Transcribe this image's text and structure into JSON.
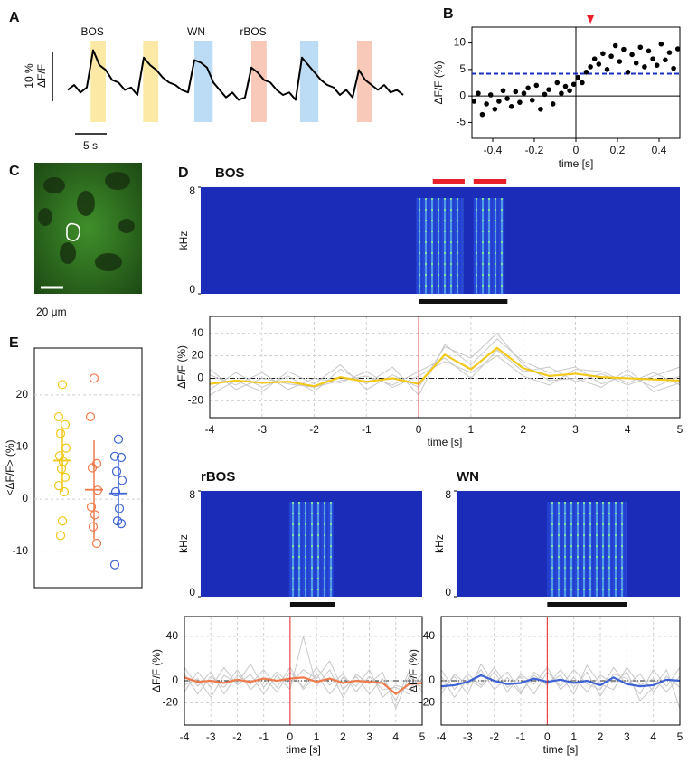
{
  "chart_data": [
    {
      "type": "trace",
      "panel": "A",
      "color": "#000000",
      "x": [
        0,
        1,
        2,
        3,
        4,
        5,
        6,
        7,
        8,
        9,
        10,
        11,
        12,
        13,
        14,
        15,
        16,
        17,
        18,
        19,
        20,
        21,
        22,
        23,
        24,
        25,
        26,
        27,
        28,
        29,
        30,
        31,
        32,
        33,
        34,
        35,
        36,
        37,
        38,
        39,
        40,
        41,
        42,
        43,
        44,
        45,
        46,
        47,
        48,
        49,
        50,
        51,
        52,
        53
      ],
      "values": [
        1,
        2,
        0.5,
        1.5,
        9,
        6,
        5,
        3,
        2.5,
        1,
        1.5,
        0,
        7.5,
        6,
        5,
        3.5,
        2.5,
        2,
        1,
        0.5,
        7,
        6.5,
        5.5,
        2.5,
        1,
        -0.5,
        0.5,
        -1,
        -0.5,
        5.5,
        4.5,
        3,
        2.5,
        1,
        0,
        0.5,
        -1,
        7.5,
        6,
        4.5,
        3,
        2,
        1.5,
        0,
        1,
        -0.5,
        5,
        3,
        2,
        1,
        2,
        0.5,
        1,
        0
      ],
      "stimuli": [
        {
          "x": [
            3.6,
            6
          ],
          "color": "#fbe9a5",
          "label": "BOS"
        },
        {
          "x": [
            11.9,
            14.3
          ],
          "color": "#fbe9a5"
        },
        {
          "x": [
            20,
            22.9
          ],
          "color": "#bcdcf5",
          "label": "WN"
        },
        {
          "x": [
            29,
            31.4
          ],
          "color": "#f8c8b8",
          "label": "rBOS"
        },
        {
          "x": [
            36.7,
            39.6
          ],
          "color": "#bcdcf5"
        },
        {
          "x": [
            45.7,
            48
          ],
          "color": "#f8c8b8"
        }
      ],
      "scale_y": {
        "value": 10,
        "label": "10 %"
      },
      "ylabel": "ΔF/F",
      "scale_x": {
        "value": 5,
        "label": "5 s"
      }
    },
    {
      "type": "scatter",
      "panel": "B",
      "color": "#000000",
      "x": [
        -0.49,
        -0.47,
        -0.45,
        -0.43,
        -0.41,
        -0.39,
        -0.37,
        -0.35,
        -0.33,
        -0.31,
        -0.29,
        -0.27,
        -0.25,
        -0.23,
        -0.21,
        -0.19,
        -0.17,
        -0.15,
        -0.13,
        -0.11,
        -0.09,
        -0.07,
        -0.05,
        -0.03,
        -0.01,
        0.01,
        0.03,
        0.05,
        0.07,
        0.09,
        0.11,
        0.13,
        0.15,
        0.17,
        0.19,
        0.21,
        0.23,
        0.25,
        0.27,
        0.29,
        0.31,
        0.33,
        0.35,
        0.37,
        0.39,
        0.41,
        0.43,
        0.45,
        0.47,
        0.49
      ],
      "values": [
        -1,
        0.5,
        -3.5,
        -1.5,
        0.2,
        -2.5,
        -1,
        1,
        -0.5,
        -2,
        0.8,
        -1.2,
        0.5,
        1.5,
        -0.8,
        2,
        -2.5,
        0.3,
        1.2,
        -1.5,
        2.5,
        0.5,
        1.8,
        1,
        2.2,
        3.5,
        2.5,
        4.5,
        5.5,
        7,
        6,
        8,
        5,
        7.5,
        9.5,
        6.5,
        8.8,
        4.5,
        7.8,
        6.2,
        9.2,
        5.5,
        8.5,
        7,
        5.8,
        9.8,
        6.8,
        8.2,
        5.2,
        8.9
      ],
      "xlim": [
        -0.5,
        0.5
      ],
      "xticks": [
        -0.4,
        -0.2,
        0,
        0.2,
        0.4
      ],
      "ylim": [
        -8,
        13
      ],
      "yticks": [
        -5,
        0,
        5,
        10
      ],
      "xlabel": "time [s]",
      "ylabel": "ΔF/F (%)",
      "hline": 4.2,
      "hline_color": "#1a2fc4",
      "marker_x": 0.07,
      "marker_color": "#e8202a"
    },
    {
      "type": "image",
      "panel": "C",
      "scale_label": "20 μm"
    },
    {
      "type": "dotplot",
      "panel": "E",
      "ylabel": "<ΔF/F> (%)",
      "ylim": [
        -17,
        29
      ],
      "yticks": [
        -10,
        0,
        10,
        20
      ],
      "grid": true,
      "series": [
        {
          "color": "#f2c81a",
          "values": [
            22,
            15.8,
            14.3,
            12.6,
            9.8,
            8.3,
            7.2,
            5.8,
            4.2,
            2.6,
            1.4,
            -4.2,
            -7
          ],
          "mean": 7.4,
          "error": 6
        },
        {
          "color": "#ef7a4c",
          "values": [
            23.2,
            15.8,
            6.8,
            6,
            1.7,
            -1.5,
            -3,
            -5.3,
            -8.5
          ],
          "mean": 1.8,
          "error": 9.5
        },
        {
          "color": "#3c62d6",
          "values": [
            11.5,
            8.2,
            8,
            5.3,
            3.6,
            1.4,
            -1.8,
            -4.2,
            -4.7,
            -12.6
          ],
          "mean": 1.1,
          "error": 6.5
        }
      ]
    },
    {
      "type": "spectrogram",
      "panel": "D",
      "title": "BOS",
      "ylabel": "kHz",
      "xlim": [
        -4,
        5
      ],
      "ylim": [
        0,
        8
      ],
      "yticks": [
        0,
        8
      ],
      "sound": [
        [
          -0.05,
          0.85
        ],
        [
          1.05,
          1.65
        ]
      ],
      "syllables": [
        [
          0.27,
          0.88
        ],
        [
          1.05,
          1.68
        ]
      ],
      "syllable_color": "#e8202a",
      "stimulus": [
        0,
        1.7
      ]
    },
    {
      "type": "line",
      "x": [
        -4,
        -3.5,
        -3,
        -2.5,
        -2,
        -1.5,
        -1,
        -0.5,
        0,
        0.5,
        1,
        1.5,
        2,
        2.5,
        3,
        3.5,
        4,
        4.5,
        5
      ],
      "xlim": [
        -4,
        5
      ],
      "xticks": [
        -4,
        -3,
        -2,
        -1,
        0,
        1,
        2,
        3,
        4,
        5
      ],
      "ylim": [
        -35,
        55
      ],
      "yticks": [
        -20,
        0,
        20,
        40
      ],
      "xlabel": "time [s]",
      "ylabel": "ΔF/F (%)",
      "grid": true,
      "hline": 0,
      "vline": 0,
      "vline_color": "#e8202a",
      "series": [
        {
          "color": "#c8c8c8",
          "values": [
            -10,
            5,
            -8,
            2,
            -12,
            8,
            -5,
            10,
            -15,
            30,
            12,
            35,
            15,
            5,
            10,
            -5,
            3,
            -8,
            2
          ]
        },
        {
          "color": "#c8c8c8",
          "values": [
            3,
            -6,
            5,
            -10,
            0,
            -4,
            6,
            -8,
            2,
            15,
            5,
            20,
            2,
            -6,
            8,
            6,
            -4,
            5,
            -6
          ]
        },
        {
          "color": "#c8c8c8",
          "values": [
            -15,
            -2,
            -12,
            6,
            -5,
            12,
            -10,
            3,
            -8,
            28,
            18,
            40,
            12,
            -2,
            0,
            -8,
            8,
            -12,
            -4
          ]
        },
        {
          "color": "#c8c8c8",
          "values": [
            8,
            -10,
            0,
            -5,
            -8,
            -2,
            2,
            -6,
            6,
            18,
            0,
            25,
            6,
            10,
            -3,
            4,
            -6,
            2,
            10
          ]
        },
        {
          "color": "#f2c81a",
          "values": [
            -5,
            -2,
            -4,
            -3,
            -7,
            1,
            -3,
            0,
            -5,
            21,
            8,
            27,
            9,
            2,
            4,
            1,
            0,
            -1,
            -2
          ]
        }
      ]
    },
    {
      "type": "spectrogram",
      "title": "rBOS",
      "ylabel": "kHz",
      "xlim": [
        -4,
        5
      ],
      "ylim": [
        0,
        8
      ],
      "yticks": [
        0,
        8
      ],
      "sound": [
        [
          -0.05,
          1.65
        ]
      ],
      "stimulus": [
        0,
        1.7
      ]
    },
    {
      "type": "line",
      "x": [
        -4,
        -3.5,
        -3,
        -2.5,
        -2,
        -1.5,
        -1,
        -0.5,
        0,
        0.5,
        1,
        1.5,
        2,
        2.5,
        3,
        3.5,
        4,
        4.5,
        5
      ],
      "xlim": [
        -4,
        5
      ],
      "xticks": [
        -4,
        -3,
        -2,
        -1,
        0,
        1,
        2,
        3,
        4,
        5
      ],
      "ylim": [
        -40,
        58
      ],
      "yticks": [
        -20,
        0,
        40
      ],
      "xlabel": "time [s]",
      "ylabel": "ΔF/F (%)",
      "grid": true,
      "hline": 0,
      "vline": 0,
      "vline_color": "#e8202a",
      "series": [
        {
          "color": "#c8c8c8",
          "values": [
            -10,
            8,
            -6,
            12,
            -4,
            6,
            -12,
            5,
            -8,
            40,
            -5,
            10,
            -15,
            6,
            -3,
            8,
            -25,
            4,
            -6
          ]
        },
        {
          "color": "#c8c8c8",
          "values": [
            6,
            -12,
            4,
            -6,
            10,
            -8,
            3,
            -10,
            8,
            -6,
            12,
            -4,
            6,
            -10,
            4,
            -8,
            -6,
            -12,
            2
          ]
        },
        {
          "color": "#c8c8c8",
          "values": [
            -4,
            2,
            -15,
            5,
            -2,
            15,
            -6,
            8,
            -3,
            10,
            2,
            18,
            -8,
            4,
            -12,
            2,
            -18,
            8,
            -10
          ]
        },
        {
          "color": "#c8c8c8",
          "values": [
            12,
            -5,
            8,
            -12,
            5,
            -3,
            10,
            -6,
            12,
            -8,
            6,
            -12,
            3,
            -5,
            10,
            -15,
            -4,
            -8,
            6
          ]
        },
        {
          "color": "#ef7a4c",
          "values": [
            3,
            -1,
            0,
            -2,
            1,
            -1,
            2,
            0,
            2,
            3,
            -1,
            2,
            -2,
            0,
            -1,
            -2,
            -12,
            -3,
            -2
          ]
        }
      ]
    },
    {
      "type": "spectrogram",
      "title": "WN",
      "ylabel": "kHz",
      "xlim": [
        -4,
        5
      ],
      "ylim": [
        0,
        8
      ],
      "yticks": [
        0,
        8
      ],
      "sound": [
        [
          0,
          3
        ]
      ],
      "stimulus": [
        0,
        3
      ]
    },
    {
      "type": "line",
      "x": [
        -4,
        -3.5,
        -3,
        -2.5,
        -2,
        -1.5,
        -1,
        -0.5,
        0,
        0.5,
        1,
        1.5,
        2,
        2.5,
        3,
        3.5,
        4,
        4.5,
        5
      ],
      "xlim": [
        -4,
        5
      ],
      "xticks": [
        -4,
        -3,
        -2,
        -1,
        0,
        1,
        2,
        3,
        4,
        5
      ],
      "ylim": [
        -40,
        58
      ],
      "yticks": [
        -20,
        0,
        40
      ],
      "xlabel": "time [s]",
      "ylabel": "ΔF/F (%)",
      "grid": true,
      "hline": 0,
      "vline": 0,
      "vline_color": "#e8202a",
      "series": [
        {
          "color": "#c8c8c8",
          "values": [
            10,
            -8,
            6,
            -4,
            12,
            -6,
            4,
            -12,
            8,
            -5,
            10,
            -3,
            -8,
            12,
            -4,
            6,
            -10,
            4,
            -6
          ]
        },
        {
          "color": "#c8c8c8",
          "values": [
            -8,
            4,
            -12,
            15,
            -2,
            8,
            -10,
            5,
            -4,
            10,
            -6,
            8,
            -14,
            6,
            2,
            -12,
            10,
            -5,
            12
          ]
        },
        {
          "color": "#c8c8c8",
          "values": [
            4,
            -15,
            2,
            -6,
            8,
            -10,
            6,
            -3,
            12,
            -8,
            3,
            -10,
            5,
            -2,
            8,
            -18,
            -6,
            10,
            -25
          ]
        },
        {
          "color": "#c8c8c8",
          "values": [
            -12,
            6,
            -4,
            10,
            -8,
            3,
            -12,
            8,
            -2,
            5,
            -12,
            14,
            -3,
            -8,
            12,
            -4,
            2,
            -10,
            4
          ]
        },
        {
          "color": "#3c62d6",
          "values": [
            -5,
            -4,
            -1,
            5,
            0,
            -3,
            -2,
            2,
            -1,
            1,
            -2,
            0,
            -4,
            3,
            -3,
            -5,
            -4,
            1,
            0
          ]
        }
      ]
    }
  ]
}
